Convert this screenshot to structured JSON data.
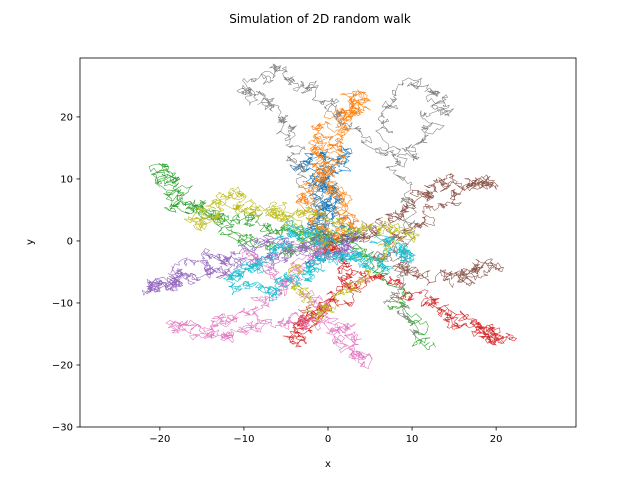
{
  "chart_data": {
    "type": "line",
    "title": "Simulation of 2D random walk",
    "xlabel": "x",
    "ylabel": "y",
    "xlim": [
      -29.5,
      29.5
    ],
    "ylim": [
      -30,
      29.5
    ],
    "xticks": [
      -20,
      -10,
      0,
      10,
      20
    ],
    "yticks": [
      -30,
      -20,
      -10,
      0,
      10,
      20
    ],
    "xtick_labels": [
      "−20",
      "−10",
      "0",
      "10",
      "20"
    ],
    "ytick_labels": [
      "−30",
      "−20",
      "−10",
      "0",
      "10",
      "20"
    ],
    "grid": false,
    "legend": "none",
    "walk_steps_per_series": 1000,
    "colors": [
      "#1f77b4",
      "#ff7f0e",
      "#2ca02c",
      "#d62728",
      "#9467bd",
      "#8c564b",
      "#e377c2",
      "#7f7f7f",
      "#bcbd22",
      "#17becf"
    ],
    "series": [
      {
        "color": "#1f77b4",
        "values": [
          [
            0,
            0
          ],
          [
            -2,
            3
          ],
          [
            1,
            8
          ],
          [
            -3,
            12
          ],
          [
            2,
            14
          ],
          [
            -1,
            7
          ],
          [
            3,
            1
          ],
          [
            -2,
            -3
          ],
          [
            0,
            2
          ]
        ]
      },
      {
        "color": "#ff7f0e",
        "values": [
          [
            0,
            0
          ],
          [
            -3,
            6
          ],
          [
            0,
            12
          ],
          [
            2,
            18
          ],
          [
            4,
            24
          ],
          [
            1,
            20
          ],
          [
            -2,
            15
          ],
          [
            1,
            9
          ],
          [
            3,
            3
          ],
          [
            -1,
            -2
          ]
        ]
      },
      {
        "color": "#2ca02c",
        "values": [
          [
            0,
            0
          ],
          [
            -6,
            2
          ],
          [
            -12,
            4
          ],
          [
            -18,
            6
          ],
          [
            -20,
            12
          ],
          [
            -14,
            3
          ],
          [
            -6,
            -2
          ],
          [
            2,
            1
          ],
          [
            8,
            -8
          ],
          [
            12,
            -18
          ]
        ]
      },
      {
        "color": "#d62728",
        "values": [
          [
            0,
            0
          ],
          [
            3,
            -6
          ],
          [
            -2,
            -12
          ],
          [
            -4,
            -16
          ],
          [
            1,
            -10
          ],
          [
            6,
            -5
          ],
          [
            12,
            -10
          ],
          [
            18,
            -14
          ],
          [
            21,
            -16
          ],
          [
            14,
            -12
          ]
        ]
      },
      {
        "color": "#9467bd",
        "values": [
          [
            0,
            0
          ],
          [
            -6,
            -2
          ],
          [
            -12,
            -4
          ],
          [
            -18,
            -6
          ],
          [
            -21,
            -8
          ],
          [
            -14,
            -3
          ],
          [
            -6,
            0
          ],
          [
            2,
            -2
          ],
          [
            4,
            3
          ]
        ]
      },
      {
        "color": "#8c564b",
        "values": [
          [
            0,
            0
          ],
          [
            6,
            2
          ],
          [
            10,
            6
          ],
          [
            14,
            9
          ],
          [
            20,
            10
          ],
          [
            12,
            4
          ],
          [
            6,
            -2
          ],
          [
            12,
            -6
          ],
          [
            20,
            -4
          ],
          [
            14,
            -7
          ]
        ]
      },
      {
        "color": "#e377c2",
        "values": [
          [
            0,
            0
          ],
          [
            -4,
            -6
          ],
          [
            -10,
            -12
          ],
          [
            -18,
            -14
          ],
          [
            -12,
            -16
          ],
          [
            -6,
            -12
          ],
          [
            2,
            -14
          ],
          [
            4,
            -20
          ],
          [
            -1,
            -10
          ],
          [
            -10,
            -2
          ]
        ]
      },
      {
        "color": "#7f7f7f",
        "values": [
          [
            0,
            0
          ],
          [
            -2,
            8
          ],
          [
            -4,
            16
          ],
          [
            -6,
            22
          ],
          [
            -10,
            24
          ],
          [
            -6,
            28
          ],
          [
            -2,
            24
          ],
          [
            2,
            20
          ],
          [
            8,
            12
          ],
          [
            12,
            18
          ],
          [
            14,
            22
          ],
          [
            10,
            26
          ],
          [
            6,
            18
          ],
          [
            10,
            4
          ],
          [
            8,
            -8
          ],
          [
            10,
            -16
          ]
        ]
      },
      {
        "color": "#bcbd22",
        "values": [
          [
            0,
            0
          ],
          [
            -6,
            4
          ],
          [
            -12,
            8
          ],
          [
            -16,
            2
          ],
          [
            -10,
            6
          ],
          [
            -4,
            4
          ],
          [
            4,
            2
          ],
          [
            10,
            2
          ],
          [
            4,
            -6
          ],
          [
            -2,
            -12
          ],
          [
            -4,
            -4
          ]
        ]
      },
      {
        "color": "#17becf",
        "values": [
          [
            0,
            0
          ],
          [
            -4,
            2
          ],
          [
            -8,
            -4
          ],
          [
            -12,
            -6
          ],
          [
            -6,
            -8
          ],
          [
            -2,
            -4
          ],
          [
            2,
            -2
          ],
          [
            6,
            -4
          ],
          [
            10,
            -2
          ],
          [
            6,
            0
          ]
        ]
      }
    ]
  }
}
